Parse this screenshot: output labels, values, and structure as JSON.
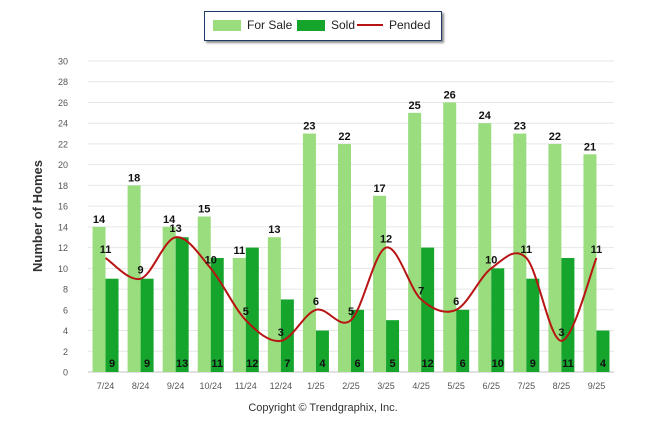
{
  "legend": {
    "for_sale": "For Sale",
    "sold": "Sold",
    "pended": "Pended"
  },
  "copyright": "Copyright © Trendgraphix, Inc.",
  "colors": {
    "for_sale": "#99dd7f",
    "sold": "#15a52d",
    "pended": "#b81414",
    "grid": "#e6e6e6",
    "axis_text": "#555555"
  },
  "chart_data": {
    "type": "bar",
    "title": "",
    "xlabel": "",
    "ylabel": "Number of Homes",
    "ylim": [
      0,
      30
    ],
    "yticks": [
      0,
      2,
      4,
      6,
      8,
      10,
      12,
      14,
      16,
      18,
      20,
      22,
      24,
      26,
      28,
      30
    ],
    "categories": [
      "7/24",
      "8/24",
      "9/24",
      "10/24",
      "11/24",
      "12/24",
      "1/25",
      "2/25",
      "3/25",
      "4/25",
      "5/25",
      "6/25",
      "7/25",
      "8/25",
      "9/25"
    ],
    "series": [
      {
        "name": "For Sale",
        "kind": "bar",
        "values": [
          14,
          18,
          14,
          15,
          11,
          13,
          23,
          22,
          17,
          25,
          26,
          24,
          23,
          22,
          21
        ]
      },
      {
        "name": "Sold",
        "kind": "bar",
        "values": [
          9,
          9,
          13,
          11,
          12,
          7,
          4,
          6,
          5,
          12,
          6,
          10,
          9,
          11,
          4
        ]
      },
      {
        "name": "Pended",
        "kind": "line",
        "values": [
          11,
          9,
          13,
          10,
          5,
          3,
          6,
          5,
          12,
          7,
          6,
          10,
          11,
          3,
          11
        ]
      }
    ]
  }
}
